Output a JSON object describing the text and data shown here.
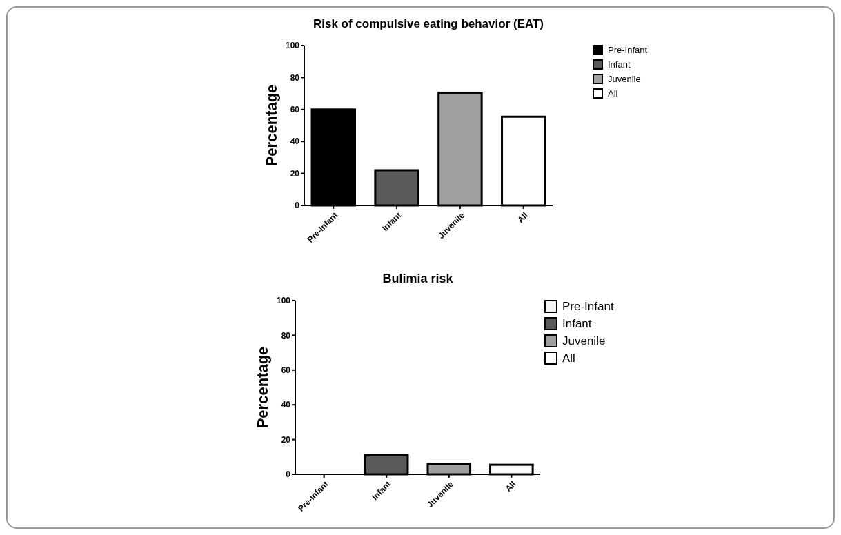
{
  "chart_data": [
    {
      "type": "bar",
      "title": "Risk of compulsive eating behavior (EAT)",
      "ylabel": "Percentage",
      "categories": [
        "Pre-Infant",
        "Infant",
        "Juvenile",
        "All"
      ],
      "series": [
        {
          "name": "Pre-Infant",
          "color": "#000000",
          "values": [
            60,
            null,
            null,
            null
          ]
        },
        {
          "name": "Infant",
          "color": "#5a5a5a",
          "values": [
            null,
            22,
            null,
            null
          ]
        },
        {
          "name": "Juvenile",
          "color": "#a0a0a0",
          "values": [
            null,
            null,
            70.5,
            null
          ]
        },
        {
          "name": "All",
          "color": "#ffffff",
          "values": [
            null,
            null,
            null,
            55.5
          ]
        }
      ],
      "ylim": [
        0,
        100
      ],
      "yticks": [
        0,
        20,
        40,
        60,
        80,
        100
      ],
      "legend": "top right",
      "grid": false
    },
    {
      "type": "bar",
      "title": "Bulimia risk",
      "ylabel": "Percentage",
      "categories": [
        "Pre-Infant",
        "Infant",
        "Juvenile",
        "All"
      ],
      "series": [
        {
          "name": "Pre-Infant",
          "color": "#f4f4f4",
          "values": [
            0,
            null,
            null,
            null
          ]
        },
        {
          "name": "Infant",
          "color": "#5a5a5a",
          "values": [
            null,
            11,
            null,
            null
          ]
        },
        {
          "name": "Juvenile",
          "color": "#a0a0a0",
          "values": [
            null,
            null,
            6,
            null
          ]
        },
        {
          "name": "All",
          "color": "#ffffff",
          "values": [
            null,
            null,
            null,
            5.5
          ]
        }
      ],
      "ylim": [
        0,
        100
      ],
      "yticks": [
        0,
        20,
        40,
        60,
        80,
        100
      ],
      "legend": "top right",
      "grid": false
    }
  ]
}
